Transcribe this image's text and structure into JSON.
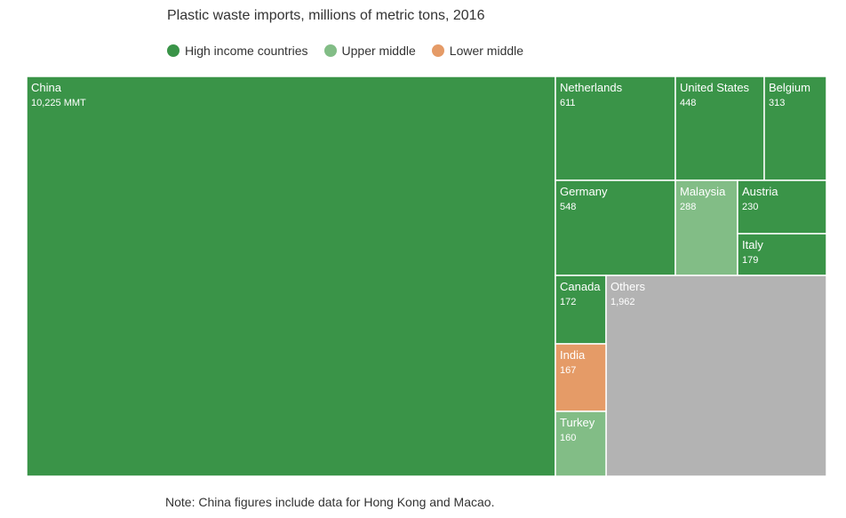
{
  "chart_data": {
    "type": "treemap",
    "title": "Plastic waste imports, millions of metric tons, 2016",
    "legend": [
      {
        "name": "High income countries",
        "color": "#3a9448"
      },
      {
        "name": "Upper middle",
        "color": "#82bd86"
      },
      {
        "name": "Lower middle",
        "color": "#e59b67"
      }
    ],
    "items": [
      {
        "name": "China",
        "value_label": "10,225 MMT",
        "value": 10225,
        "group": "high"
      },
      {
        "name": "Netherlands",
        "value_label": "611",
        "value": 611,
        "group": "high"
      },
      {
        "name": "United States",
        "value_label": "448",
        "value": 448,
        "group": "high"
      },
      {
        "name": "Belgium",
        "value_label": "313",
        "value": 313,
        "group": "high"
      },
      {
        "name": "Germany",
        "value_label": "548",
        "value": 548,
        "group": "high"
      },
      {
        "name": "Malaysia",
        "value_label": "288",
        "value": 288,
        "group": "upper"
      },
      {
        "name": "Austria",
        "value_label": "230",
        "value": 230,
        "group": "high"
      },
      {
        "name": "Italy",
        "value_label": "179",
        "value": 179,
        "group": "high"
      },
      {
        "name": "Canada",
        "value_label": "172",
        "value": 172,
        "group": "high"
      },
      {
        "name": "Others",
        "value_label": "1,962",
        "value": 1962,
        "group": "other"
      },
      {
        "name": "India",
        "value_label": "167",
        "value": 167,
        "group": "lower"
      },
      {
        "name": "Turkey",
        "value_label": "160",
        "value": 160,
        "group": "upper"
      }
    ],
    "group_colors": {
      "high": "#3a9448",
      "upper": "#82bd86",
      "lower": "#e59b67",
      "other": "#b3b3b3"
    }
  },
  "note": "Note: China figures include data for Hong Kong and Macao."
}
